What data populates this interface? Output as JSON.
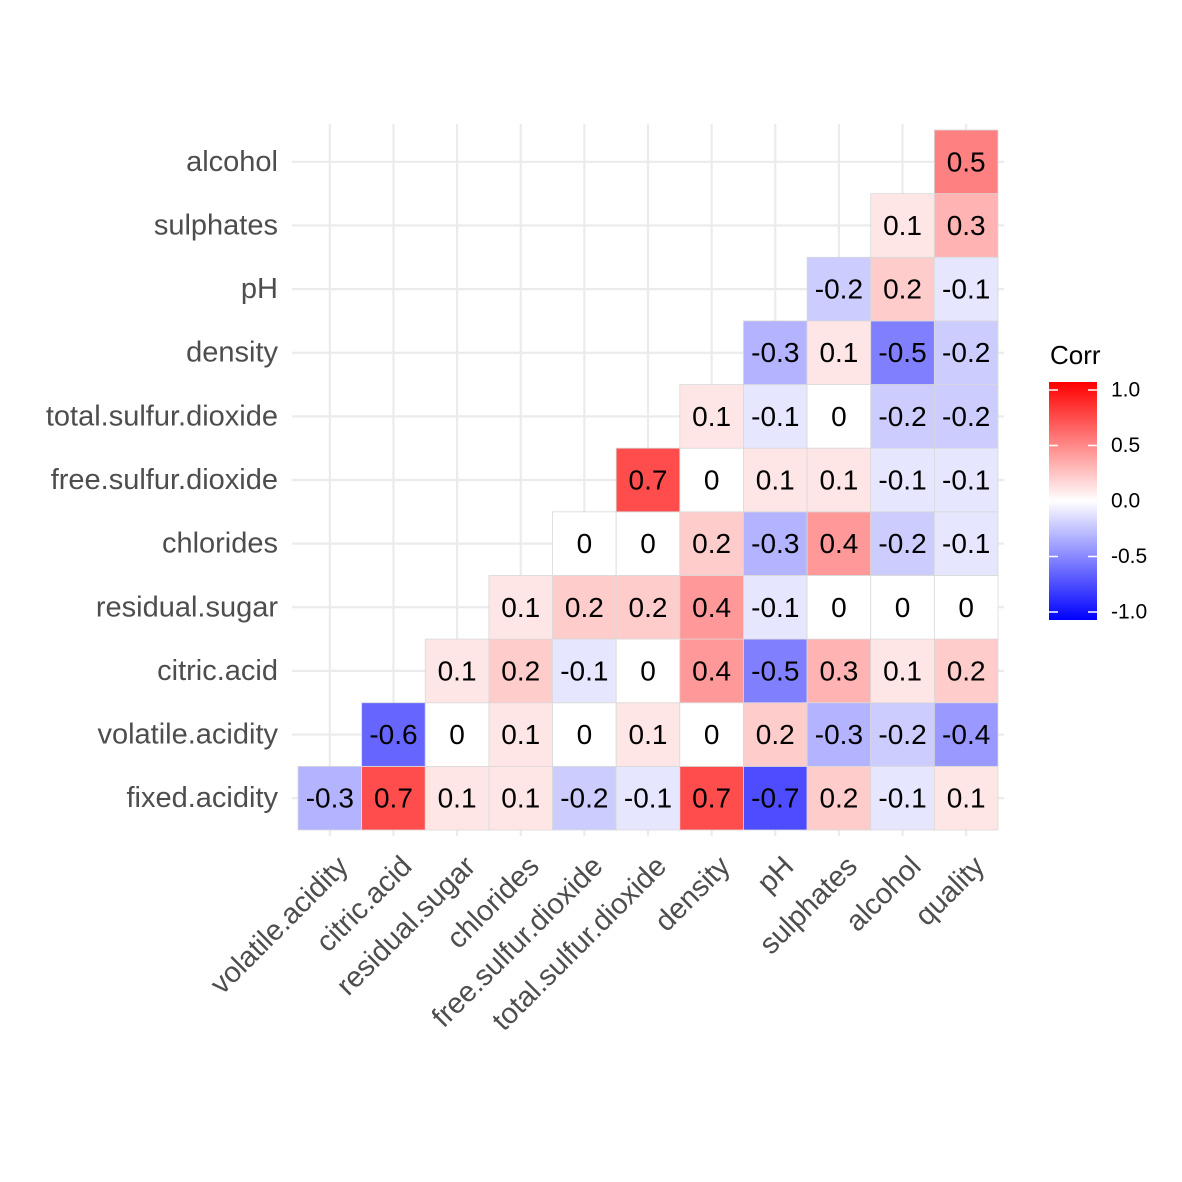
{
  "chart_data": {
    "type": "heatmap",
    "x_categories": [
      "volatile.acidity",
      "citric.acid",
      "residual.sugar",
      "chlorides",
      "free.sulfur.dioxide",
      "total.sulfur.dioxide",
      "density",
      "pH",
      "sulphates",
      "alcohol",
      "quality"
    ],
    "y_categories": [
      "fixed.acidity",
      "volatile.acidity",
      "citric.acid",
      "residual.sugar",
      "chlorides",
      "free.sulfur.dioxide",
      "total.sulfur.dioxide",
      "density",
      "pH",
      "sulphates",
      "alcohol"
    ],
    "rows": [
      {
        "y": "fixed.acidity",
        "values": [
          -0.3,
          0.7,
          0.1,
          0.1,
          -0.2,
          -0.1,
          0.7,
          -0.7,
          0.2,
          -0.1,
          0.1
        ]
      },
      {
        "y": "volatile.acidity",
        "values": [
          null,
          -0.6,
          0,
          0.1,
          0,
          0.1,
          0,
          0.2,
          -0.3,
          -0.2,
          -0.4
        ]
      },
      {
        "y": "citric.acid",
        "values": [
          null,
          null,
          0.1,
          0.2,
          -0.1,
          0,
          0.4,
          -0.5,
          0.3,
          0.1,
          0.2
        ]
      },
      {
        "y": "residual.sugar",
        "values": [
          null,
          null,
          null,
          0.1,
          0.2,
          0.2,
          0.4,
          -0.1,
          0,
          0,
          0
        ]
      },
      {
        "y": "chlorides",
        "values": [
          null,
          null,
          null,
          null,
          0,
          0,
          0.2,
          -0.3,
          0.4,
          -0.2,
          -0.1
        ]
      },
      {
        "y": "free.sulfur.dioxide",
        "values": [
          null,
          null,
          null,
          null,
          null,
          0.7,
          0,
          0.1,
          0.1,
          -0.1,
          -0.1
        ]
      },
      {
        "y": "total.sulfur.dioxide",
        "values": [
          null,
          null,
          null,
          null,
          null,
          null,
          0.1,
          -0.1,
          0,
          -0.2,
          -0.2
        ]
      },
      {
        "y": "density",
        "values": [
          null,
          null,
          null,
          null,
          null,
          null,
          null,
          -0.3,
          0.1,
          -0.5,
          -0.2
        ]
      },
      {
        "y": "pH",
        "values": [
          null,
          null,
          null,
          null,
          null,
          null,
          null,
          null,
          -0.2,
          0.2,
          -0.1
        ]
      },
      {
        "y": "sulphates",
        "values": [
          null,
          null,
          null,
          null,
          null,
          null,
          null,
          null,
          null,
          0.1,
          0.3
        ]
      },
      {
        "y": "alcohol",
        "values": [
          null,
          null,
          null,
          null,
          null,
          null,
          null,
          null,
          null,
          null,
          0.5
        ]
      }
    ],
    "legend": {
      "title": "Corr",
      "placement": "right",
      "ticks": [
        1.0,
        0.5,
        0.0,
        -0.5,
        -1.0
      ],
      "tick_labels": [
        "1.0",
        "0.5",
        "0.0",
        "-0.5",
        "-1.0"
      ],
      "range": [
        -1,
        1
      ],
      "colors": {
        "low": "#0000ff",
        "mid": "#ffffff",
        "high": "#ff0000"
      }
    },
    "grid": true
  }
}
